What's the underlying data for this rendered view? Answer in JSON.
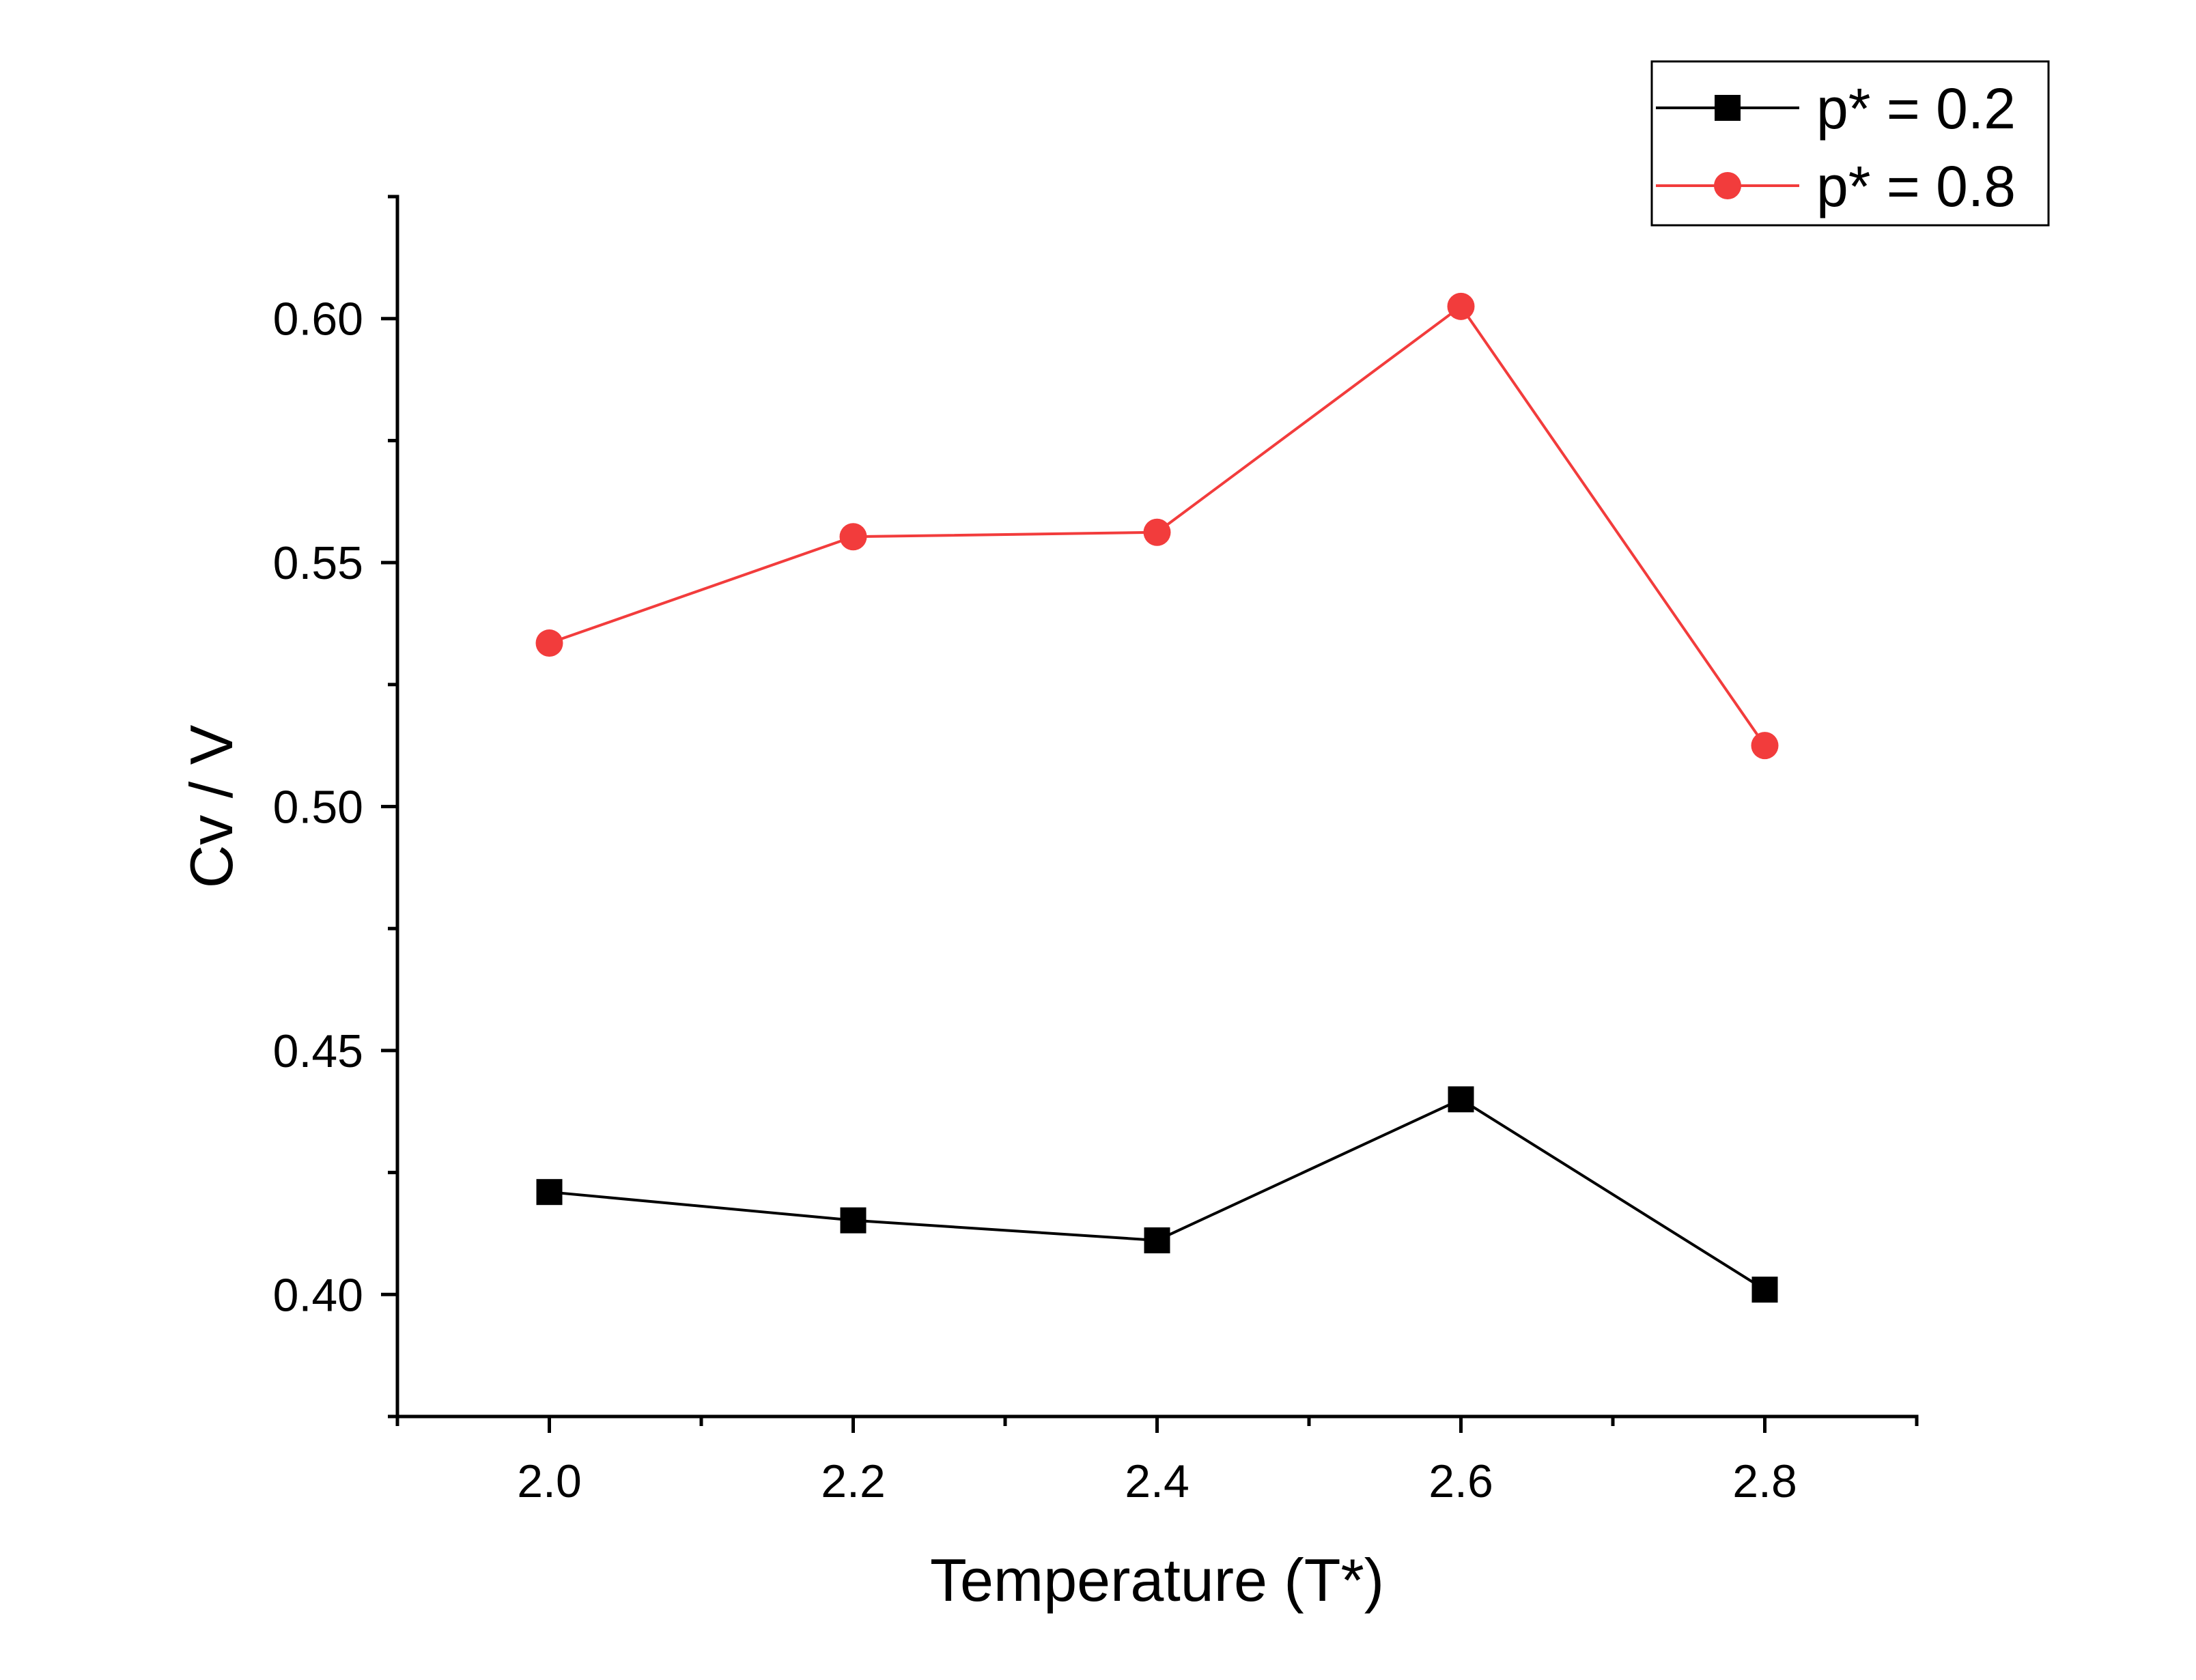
{
  "chart_data": {
    "type": "line",
    "title": "",
    "xlabel": "Temperature (T*)",
    "ylabel": "Cv / V",
    "x": [
      2.0,
      2.2,
      2.4,
      2.6,
      2.8
    ],
    "xlim": [
      1.9,
      2.9
    ],
    "ylim": [
      0.375,
      0.625
    ],
    "x_major_ticks": [
      2.0,
      2.2,
      2.4,
      2.6,
      2.8
    ],
    "x_minor_ticks": [
      1.9,
      2.1,
      2.3,
      2.5,
      2.7,
      2.9
    ],
    "x_tick_labels": [
      "2.0",
      "2.2",
      "2.4",
      "2.6",
      "2.8"
    ],
    "y_major_ticks": [
      0.4,
      0.45,
      0.5,
      0.55,
      0.6
    ],
    "y_minor_ticks": [
      0.375,
      0.425,
      0.475,
      0.525,
      0.575,
      0.625
    ],
    "y_tick_labels": [
      "0.40",
      "0.45",
      "0.50",
      "0.55",
      "0.60"
    ],
    "grid": false,
    "legend_position": "top-right",
    "series": [
      {
        "name": "p* = 0.2",
        "color": "#000000",
        "marker": "square",
        "values": [
          0.421,
          0.4152,
          0.4111,
          0.44,
          0.401
        ]
      },
      {
        "name": "p* = 0.8",
        "color": "#f23c3c",
        "marker": "circle",
        "values": [
          0.5335,
          0.5553,
          0.5562,
          0.6025,
          0.5125
        ]
      }
    ]
  }
}
